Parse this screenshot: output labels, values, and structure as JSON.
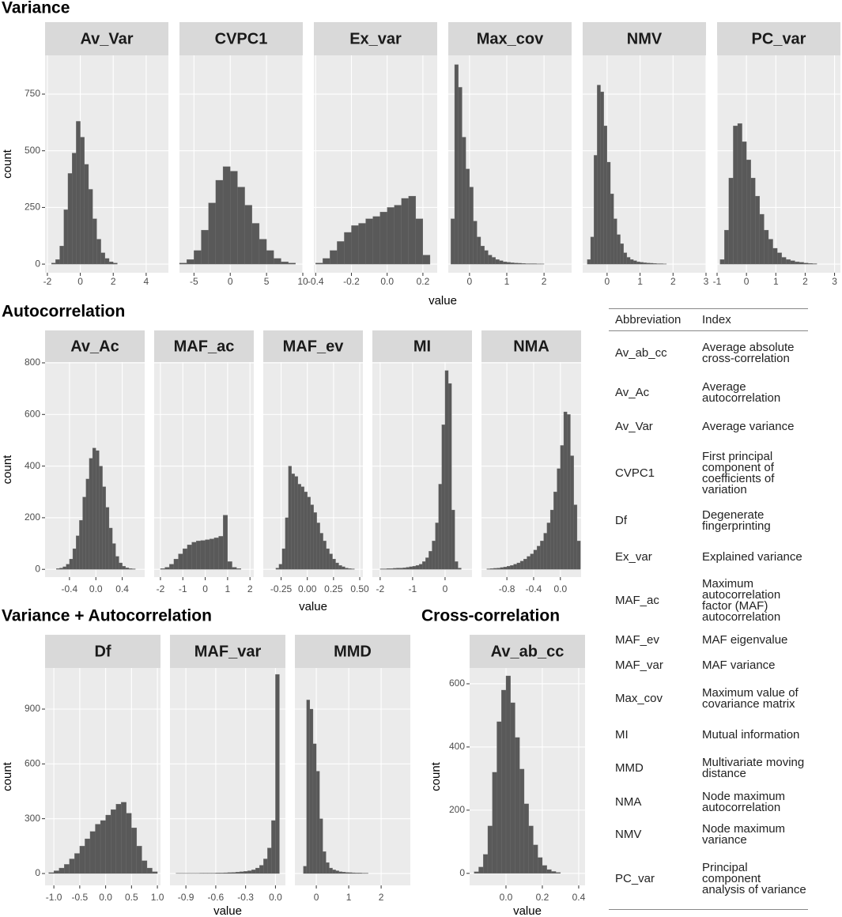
{
  "sections": [
    {
      "title": "Variance",
      "x_label": "value",
      "y_label": "count"
    },
    {
      "title": "Autocorrelation",
      "x_label": "value",
      "y_label": "count"
    },
    {
      "title": "Variance + Autocorrelation",
      "x_label": "value",
      "y_label": "count"
    },
    {
      "title": "Cross-correlation",
      "x_label": "value",
      "y_label": "count"
    }
  ],
  "chart_data": [
    {
      "type": "histogram",
      "title": "Av_Var",
      "color": "#595959",
      "xlim": [
        -2.14,
        5.35
      ],
      "xticks": [
        -2,
        0,
        2,
        4
      ],
      "ylim": [
        -38,
        921
      ],
      "yticks": [
        0,
        250,
        500,
        750
      ],
      "grid": true,
      "bins": [
        -1.75,
        -1.5,
        -1.25,
        -1,
        -0.75,
        -0.5,
        -0.25,
        0,
        0.25,
        0.5,
        0.75,
        1,
        1.25,
        1.5,
        1.75,
        2,
        2.25
      ],
      "values": [
        5,
        20,
        80,
        240,
        400,
        490,
        630,
        560,
        440,
        330,
        200,
        110,
        50,
        25,
        10,
        5
      ]
    },
    {
      "type": "histogram",
      "title": "CVPC1",
      "color": "#595959",
      "xlim": [
        -7,
        10
      ],
      "xticks": [
        -5,
        0,
        5,
        10
      ],
      "ylim": [
        -38,
        921
      ],
      "yticks": [
        0,
        250,
        500,
        750
      ],
      "grid": true,
      "bins": [
        -7,
        -6,
        -5,
        -4,
        -3,
        -2,
        -1,
        0,
        1,
        2,
        3,
        4,
        5,
        6,
        7,
        8,
        9
      ],
      "values": [
        5,
        20,
        60,
        150,
        270,
        370,
        430,
        410,
        340,
        260,
        180,
        110,
        60,
        25,
        10,
        5
      ]
    },
    {
      "type": "histogram",
      "title": "Ex_var",
      "color": "#595959",
      "xlim": [
        -0.41,
        0.28
      ],
      "xticks": [
        -0.4,
        -0.2,
        {
          "value": 0,
          "label": "0.0"
        },
        0.2
      ],
      "ylim": [
        -38,
        921
      ],
      "yticks": [
        0,
        250,
        500,
        750
      ],
      "grid": true,
      "bins": [
        -0.4,
        -0.36,
        -0.32,
        -0.28,
        -0.24,
        -0.2,
        -0.16,
        -0.12,
        -0.08,
        -0.04,
        0,
        0.04,
        0.08,
        0.12,
        0.16,
        0.2,
        0.24
      ],
      "values": [
        5,
        25,
        60,
        100,
        140,
        170,
        180,
        200,
        210,
        230,
        250,
        260,
        290,
        300,
        200,
        40
      ]
    },
    {
      "type": "histogram",
      "title": "Max_cov",
      "color": "#595959",
      "xlim": [
        -0.57,
        2.74
      ],
      "xticks": [
        0,
        1,
        2
      ],
      "ylim": [
        -38,
        921
      ],
      "yticks": [
        0,
        250,
        500,
        750
      ],
      "grid": true,
      "bins": [
        -0.5,
        -0.4,
        -0.3,
        -0.2,
        -0.1,
        0,
        0.1,
        0.2,
        0.3,
        0.4,
        0.5,
        0.6,
        0.7,
        0.8,
        0.9,
        1,
        1.1,
        1.2,
        1.3,
        1.4,
        1.5,
        1.6,
        1.7,
        1.8,
        1.9,
        2
      ],
      "values": [
        200,
        880,
        780,
        560,
        420,
        340,
        190,
        120,
        80,
        60,
        40,
        30,
        20,
        15,
        10,
        8,
        6,
        5,
        4,
        3,
        2,
        2,
        2,
        1,
        1
      ]
    },
    {
      "type": "histogram",
      "title": "NMV",
      "color": "#595959",
      "xlim": [
        -0.74,
        3
      ],
      "xticks": [
        0,
        1,
        2,
        3
      ],
      "ylim": [
        -38,
        921
      ],
      "yticks": [
        0,
        250,
        500,
        750
      ],
      "grid": true,
      "bins": [
        -0.6,
        -0.5,
        -0.4,
        -0.3,
        -0.2,
        -0.1,
        0,
        0.1,
        0.2,
        0.3,
        0.4,
        0.5,
        0.6,
        0.7,
        0.8,
        0.9,
        1,
        1.1,
        1.2,
        1.3,
        1.4,
        1.5,
        1.6,
        1.7,
        1.8
      ],
      "values": [
        20,
        120,
        480,
        790,
        760,
        610,
        450,
        310,
        200,
        130,
        90,
        50,
        30,
        20,
        15,
        10,
        8,
        6,
        5,
        4,
        3,
        2,
        2,
        1
      ]
    },
    {
      "type": "histogram",
      "title": "PC_var",
      "color": "#595959",
      "xlim": [
        -1,
        3.2
      ],
      "xticks": [
        -1,
        0,
        1,
        2,
        3
      ],
      "ylim": [
        -38,
        921
      ],
      "yticks": [
        0,
        250,
        500,
        750
      ],
      "grid": true,
      "bins": [
        -0.9,
        -0.75,
        -0.6,
        -0.45,
        -0.3,
        -0.15,
        0,
        0.15,
        0.3,
        0.45,
        0.6,
        0.75,
        0.9,
        1.05,
        1.2,
        1.35,
        1.5,
        1.65,
        1.8,
        1.95,
        2.1,
        2.25,
        2.4
      ],
      "values": [
        20,
        150,
        380,
        610,
        620,
        540,
        460,
        380,
        300,
        220,
        150,
        110,
        70,
        50,
        30,
        20,
        15,
        10,
        8,
        5,
        3,
        2
      ]
    },
    {
      "type": "histogram",
      "title": "Av_Ac",
      "color": "#595959",
      "xlim": [
        -0.77,
        0.74
      ],
      "xticks": [
        -0.4,
        {
          "value": 0,
          "label": "0.0"
        },
        0.4
      ],
      "ylim": [
        -30,
        803
      ],
      "yticks": [
        0,
        200,
        400,
        600,
        800
      ],
      "grid": true,
      "bins": [
        -0.6,
        -0.55,
        -0.5,
        -0.45,
        -0.4,
        -0.35,
        -0.3,
        -0.25,
        -0.2,
        -0.15,
        -0.1,
        -0.05,
        0,
        0.05,
        0.1,
        0.15,
        0.2,
        0.25,
        0.3,
        0.35,
        0.4,
        0.45,
        0.5,
        0.55,
        0.6
      ],
      "values": [
        3,
        5,
        10,
        20,
        40,
        80,
        130,
        190,
        280,
        350,
        430,
        470,
        460,
        400,
        320,
        240,
        160,
        100,
        50,
        25,
        12,
        6,
        3,
        2
      ]
    },
    {
      "type": "histogram",
      "title": "MAF_ac",
      "color": "#595959",
      "xlim": [
        -2.28,
        2.17
      ],
      "xticks": [
        -2,
        -1,
        0,
        1,
        2
      ],
      "ylim": [
        -30,
        803
      ],
      "yticks": [
        0,
        200,
        400,
        600,
        800
      ],
      "grid": true,
      "bins": [
        -2,
        -1.8,
        -1.6,
        -1.4,
        -1.2,
        -1,
        -0.8,
        -0.6,
        -0.4,
        -0.2,
        0,
        0.2,
        0.4,
        0.6,
        0.8,
        1,
        1.2,
        1.4,
        1.6
      ],
      "values": [
        3,
        8,
        20,
        40,
        60,
        80,
        95,
        105,
        110,
        112,
        115,
        118,
        122,
        128,
        210,
        30,
        8,
        3
      ]
    },
    {
      "type": "histogram",
      "title": "MAF_ev",
      "color": "#595959",
      "xlim": [
        -0.42,
        0.53
      ],
      "xticks": [
        -0.25,
        {
          "value": 0,
          "label": "0.00"
        },
        0.25,
        {
          "value": 0.5,
          "label": "0.50"
        }
      ],
      "ylim": [
        -30,
        803
      ],
      "yticks": [
        0,
        200,
        400,
        600,
        800
      ],
      "grid": true,
      "bins": [
        -0.3,
        -0.27,
        -0.24,
        -0.21,
        -0.18,
        -0.15,
        -0.12,
        -0.09,
        -0.06,
        -0.03,
        0,
        0.03,
        0.06,
        0.09,
        0.12,
        0.15,
        0.18,
        0.21,
        0.24,
        0.27,
        0.3,
        0.33,
        0.36,
        0.39,
        0.42,
        0.45
      ],
      "values": [
        5,
        20,
        80,
        200,
        400,
        370,
        360,
        330,
        320,
        300,
        280,
        250,
        220,
        180,
        140,
        110,
        80,
        60,
        40,
        25,
        15,
        10,
        5,
        3,
        2
      ]
    },
    {
      "type": "histogram",
      "title": "MI",
      "color": "#595959",
      "xlim": [
        -2.24,
        0.83
      ],
      "xticks": [
        -2,
        -1,
        0
      ],
      "ylim": [
        -30,
        803
      ],
      "yticks": [
        0,
        200,
        400,
        600,
        800
      ],
      "grid": true,
      "bins": [
        -2,
        -1.9,
        -1.8,
        -1.7,
        -1.6,
        -1.5,
        -1.4,
        -1.3,
        -1.2,
        -1.1,
        -1,
        -0.9,
        -0.8,
        -0.7,
        -0.6,
        -0.5,
        -0.4,
        -0.3,
        -0.2,
        -0.1,
        0,
        0.1,
        0.2,
        0.3,
        0.4,
        0.5
      ],
      "values": [
        2,
        2,
        3,
        3,
        4,
        5,
        5,
        6,
        8,
        10,
        12,
        15,
        20,
        30,
        45,
        70,
        110,
        180,
        330,
        560,
        770,
        720,
        230,
        30,
        5
      ]
    },
    {
      "type": "histogram",
      "title": "NMA",
      "color": "#595959",
      "xlim": [
        -1.18,
        0.31
      ],
      "xticks": [
        -0.8,
        -0.4,
        {
          "value": 0,
          "label": "0.0"
        }
      ],
      "ylim": [
        -30,
        803
      ],
      "yticks": [
        0,
        200,
        400,
        600,
        800
      ],
      "grid": true,
      "bins": [
        -1.1,
        -1.05,
        -1,
        -0.95,
        -0.9,
        -0.85,
        -0.8,
        -0.75,
        -0.7,
        -0.65,
        -0.6,
        -0.55,
        -0.5,
        -0.45,
        -0.4,
        -0.35,
        -0.3,
        -0.25,
        -0.2,
        -0.15,
        -0.1,
        -0.05,
        0,
        0.05,
        0.1,
        0.15,
        0.2,
        0.25,
        0.3
      ],
      "values": [
        2,
        3,
        4,
        5,
        7,
        9,
        12,
        15,
        20,
        25,
        32,
        40,
        50,
        60,
        75,
        90,
        110,
        140,
        180,
        230,
        300,
        390,
        480,
        610,
        600,
        440,
        250,
        110
      ]
    },
    {
      "type": "histogram",
      "title": "Df",
      "color": "#595959",
      "xlim": [
        -1.17,
        1.06
      ],
      "xticks": [
        {
          "value": -1,
          "label": "-1.0"
        },
        -0.5,
        {
          "value": 0,
          "label": "0.0"
        },
        0.5,
        {
          "value": 1,
          "label": "1.0"
        }
      ],
      "ylim": [
        -65,
        1125
      ],
      "yticks": [
        0,
        300,
        600,
        900
      ],
      "grid": true,
      "bins": [
        -1.1,
        -1,
        -0.9,
        -0.8,
        -0.7,
        -0.6,
        -0.5,
        -0.4,
        -0.3,
        -0.2,
        -0.1,
        0,
        0.1,
        0.2,
        0.3,
        0.4,
        0.5,
        0.6,
        0.7,
        0.8,
        0.9,
        1
      ],
      "values": [
        5,
        15,
        30,
        50,
        80,
        110,
        150,
        190,
        230,
        270,
        290,
        320,
        350,
        380,
        390,
        330,
        250,
        150,
        70,
        30,
        10
      ]
    },
    {
      "type": "histogram",
      "title": "MAF_var",
      "color": "#595959",
      "xlim": [
        -1.06,
        0.1
      ],
      "xticks": [
        -0.9,
        -0.6,
        -0.3,
        {
          "value": 0,
          "label": "0.0"
        }
      ],
      "ylim": [
        -65,
        1125
      ],
      "yticks": [
        0,
        300,
        600,
        900
      ],
      "grid": true,
      "bins": [
        -1,
        -0.96,
        -0.92,
        -0.88,
        -0.84,
        -0.8,
        -0.76,
        -0.72,
        -0.68,
        -0.64,
        -0.6,
        -0.56,
        -0.52,
        -0.48,
        -0.44,
        -0.4,
        -0.36,
        -0.32,
        -0.28,
        -0.24,
        -0.2,
        -0.16,
        -0.12,
        -0.08,
        -0.04,
        0,
        0.04
      ],
      "values": [
        1,
        1,
        1,
        1,
        1,
        1,
        2,
        2,
        2,
        2,
        3,
        3,
        4,
        5,
        6,
        8,
        10,
        12,
        15,
        20,
        30,
        45,
        80,
        140,
        290,
        1090
      ]
    },
    {
      "type": "histogram",
      "title": "MMD",
      "color": "#595959",
      "xlim": [
        -0.66,
        2.9
      ],
      "xticks": [
        0,
        1,
        2
      ],
      "ylim": [
        -65,
        1125
      ],
      "yticks": [
        0,
        300,
        600,
        900
      ],
      "grid": true,
      "bins": [
        -0.4,
        -0.3,
        -0.2,
        -0.1,
        0,
        0.1,
        0.2,
        0.3,
        0.4,
        0.5,
        0.6,
        0.7,
        0.8,
        0.9,
        1,
        1.1,
        1.2,
        1.3,
        1.4,
        1.5,
        1.6
      ],
      "values": [
        40,
        950,
        900,
        710,
        560,
        300,
        120,
        60,
        30,
        20,
        15,
        10,
        8,
        6,
        5,
        4,
        3,
        3,
        2,
        2
      ]
    },
    {
      "type": "histogram",
      "title": "Av_ab_cc",
      "color": "#595959",
      "xlim": [
        -0.2,
        0.435
      ],
      "xticks": [
        {
          "value": 0,
          "label": "0.0"
        },
        0.2,
        0.4
      ],
      "ylim": [
        -38,
        650
      ],
      "yticks": [
        0,
        200,
        400,
        600
      ],
      "grid": true,
      "bins": [
        -0.175,
        -0.15,
        -0.125,
        -0.1,
        -0.075,
        -0.05,
        -0.025,
        0,
        0.025,
        0.05,
        0.075,
        0.1,
        0.125,
        0.15,
        0.175,
        0.2,
        0.225,
        0.25,
        0.275,
        0.3
      ],
      "values": [
        5,
        20,
        60,
        150,
        320,
        480,
        580,
        625,
        540,
        430,
        330,
        220,
        150,
        90,
        50,
        25,
        12,
        6,
        3
      ]
    }
  ],
  "table": {
    "header": [
      "Abbreviation",
      "Index"
    ],
    "rows": [
      [
        "Av_ab_cc",
        "Average absolute cross-correlation"
      ],
      [
        "Av_Ac",
        "Average autocorrelation"
      ],
      [
        "Av_Var",
        "Average variance"
      ],
      [
        "CVPC1",
        "First principal component of coefficients of variation"
      ],
      [
        "Df",
        "Degenerate fingerprinting"
      ],
      [
        "Ex_var",
        "Explained variance"
      ],
      [
        "MAF_ac",
        "Maximum autocorrelation factor (MAF) autocorrelation"
      ],
      [
        "MAF_ev",
        "MAF eigenvalue"
      ],
      [
        "MAF_var",
        "MAF variance"
      ],
      [
        "Max_cov",
        "Maximum value of covariance matrix"
      ],
      [
        "MI",
        "Mutual information"
      ],
      [
        "MMD",
        "Multivariate moving distance"
      ],
      [
        "NMA",
        "Node maximum autocorrelation"
      ],
      [
        "NMV",
        "Node maximum variance"
      ],
      [
        "PC_var",
        "Principal component analysis of variance"
      ]
    ]
  }
}
